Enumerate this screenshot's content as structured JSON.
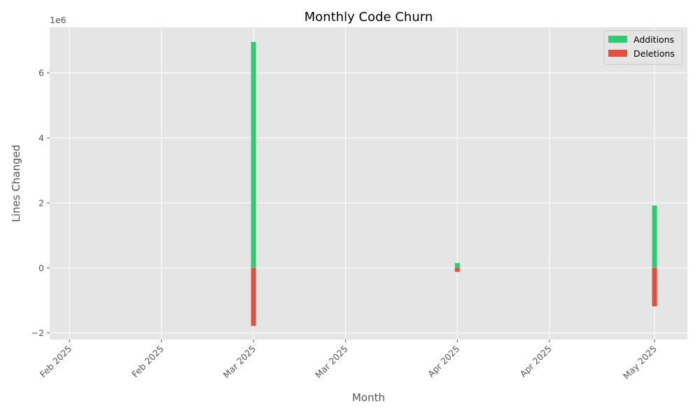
{
  "chart_data": {
    "type": "bar",
    "title": "Monthly Code Churn",
    "xlabel": "Month",
    "ylabel": "Lines Changed",
    "y_offset_text": "1e6",
    "ylim": [
      -2200000,
      7400000
    ],
    "yticks": [
      -2000000,
      0,
      2000000,
      4000000,
      6000000
    ],
    "ytick_labels": [
      "−2",
      "0",
      "2",
      "4",
      "6"
    ],
    "xlim": [
      "2025-01-29",
      "2025-05-06"
    ],
    "xticks": [
      {
        "date": "2025-02-01",
        "label": "Feb 2025"
      },
      {
        "date": "2025-02-15",
        "label": "Feb 2025"
      },
      {
        "date": "2025-03-01",
        "label": "Mar 2025"
      },
      {
        "date": "2025-03-15",
        "label": "Mar 2025"
      },
      {
        "date": "2025-04-01",
        "label": "Apr 2025"
      },
      {
        "date": "2025-04-15",
        "label": "Apr 2025"
      },
      {
        "date": "2025-05-01",
        "label": "May 2025"
      }
    ],
    "x": [
      "2025-03-01",
      "2025-04-01",
      "2025-05-01"
    ],
    "series": [
      {
        "name": "Additions",
        "color": "#2ecc71",
        "values": [
          6950000,
          150000,
          1920000
        ]
      },
      {
        "name": "Deletions",
        "color": "#e74c3c",
        "values": [
          -1780000,
          -120000,
          -1180000
        ]
      }
    ],
    "grid": true,
    "legend": "top-right",
    "colors": {
      "plot_background": "#e5e5e5",
      "grid": "#ffffff"
    }
  }
}
